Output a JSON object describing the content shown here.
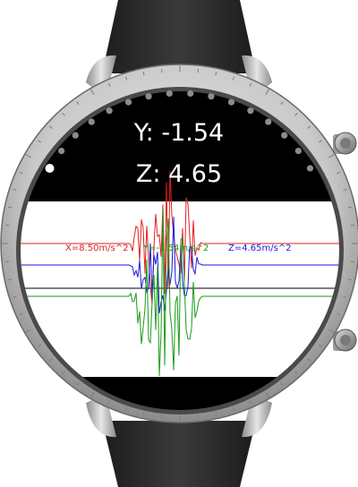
{
  "readouts": {
    "y_text": "Y: -1.54",
    "z_text": "Z: 4.65"
  },
  "chart_labels": {
    "x": "X=8.50m/s^2",
    "y": "Y=-1.54m/s^2",
    "z": "Z=4.65m/s^2"
  },
  "colors": {
    "x_series": "#e02020",
    "y_series": "#1a9a1a",
    "z_series": "#1a1ad8",
    "baseline": "#000000",
    "screen_bg": "#000000",
    "plot_bg": "#ffffff"
  },
  "page_indicator": {
    "count": 16,
    "active_index": 0
  },
  "icons": {
    "crown_top": "crown-button-icon",
    "crown_bottom": "crown-button-icon"
  }
}
